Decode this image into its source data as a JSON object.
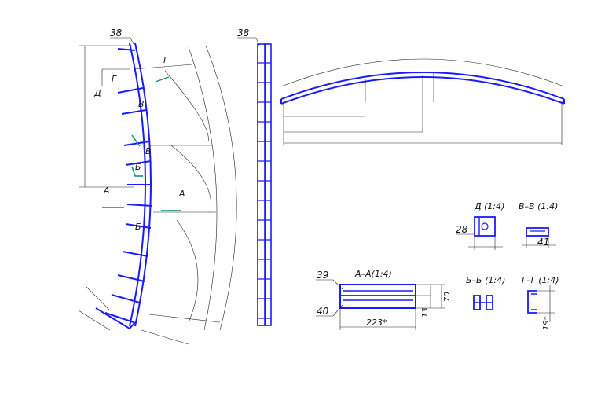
{
  "drawing": {
    "part_number_arc": "38",
    "part_number_side": "38",
    "section_marks": {
      "A": "А",
      "B": "Б",
      "V": "В",
      "G": "Г",
      "D": "Д"
    },
    "details": {
      "D": {
        "title": "Д (1:4)",
        "dim": "28"
      },
      "VV": {
        "title": "В–В (1:4)",
        "dim": "41"
      },
      "AA": {
        "title": "А–А(1:4)",
        "ref_top": "39",
        "ref_bottom": "40",
        "dim_length": "223*",
        "dim_height": "70",
        "dim_gap": "13"
      },
      "BB": {
        "title": "Б–Б (1:4)"
      },
      "GG": {
        "title": "Г–Г (1:4)",
        "dim": "19*"
      }
    },
    "colors": {
      "part": "#1a1aff",
      "cut_line": "#008a7a",
      "dimension": "#222222"
    }
  }
}
